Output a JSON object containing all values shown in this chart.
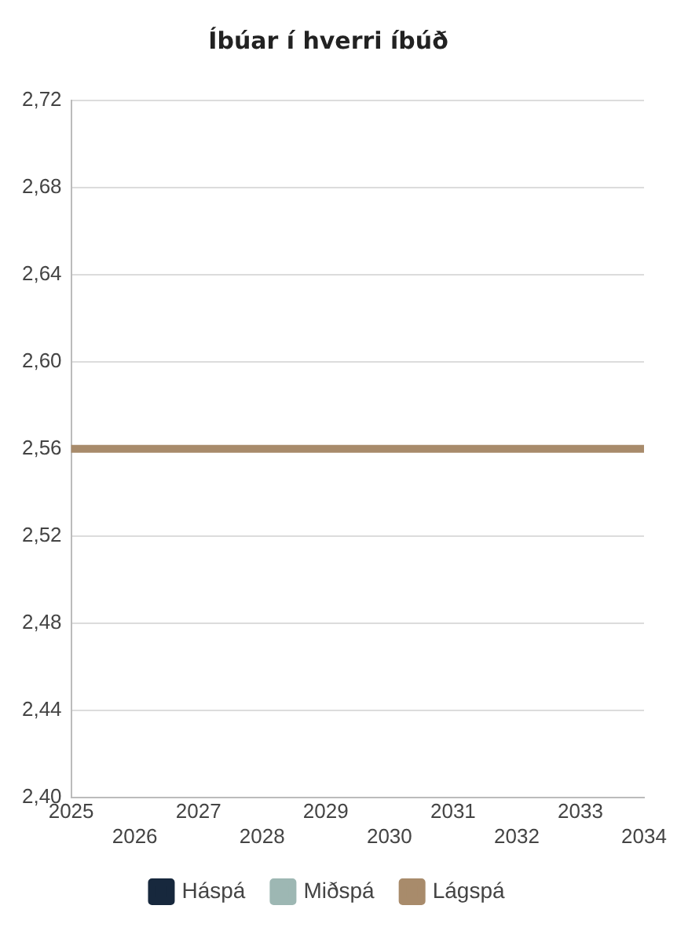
{
  "chart_data": {
    "type": "line",
    "title": "Íbúar í hverri íbúð",
    "categories": [
      "2025",
      "2026",
      "2027",
      "2028",
      "2029",
      "2030",
      "2031",
      "2032",
      "2033",
      "2034"
    ],
    "series": [
      {
        "name": "Háspá",
        "color": "#17283d",
        "values": [
          null,
          null,
          null,
          null,
          null,
          null,
          null,
          null,
          null,
          null
        ]
      },
      {
        "name": "Miðspá",
        "color": "#9db7b3",
        "values": [
          null,
          null,
          null,
          null,
          null,
          null,
          null,
          null,
          null,
          null
        ]
      },
      {
        "name": "Lágspá",
        "color": "#a88b6b",
        "values": [
          2.56,
          2.56,
          2.56,
          2.56,
          2.56,
          2.56,
          2.56,
          2.56,
          2.56,
          2.56
        ]
      }
    ],
    "ylim": [
      2.4,
      2.72
    ],
    "yticks": [
      {
        "value": 2.4,
        "label": "2,40"
      },
      {
        "value": 2.44,
        "label": "2,44"
      },
      {
        "value": 2.48,
        "label": "2,48"
      },
      {
        "value": 2.52,
        "label": "2,52"
      },
      {
        "value": 2.56,
        "label": "2,56"
      },
      {
        "value": 2.6,
        "label": "2,60"
      },
      {
        "value": 2.64,
        "label": "2,64"
      },
      {
        "value": 2.68,
        "label": "2,68"
      },
      {
        "value": 2.72,
        "label": "2,72"
      }
    ],
    "grid": "y",
    "legend": "bottom",
    "marker": "none",
    "line_style": "solid"
  }
}
